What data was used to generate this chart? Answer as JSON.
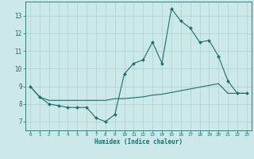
{
  "line1_x": [
    0,
    1,
    2,
    3,
    4,
    5,
    6,
    7,
    8,
    9,
    10,
    11,
    12,
    13,
    14,
    15,
    16,
    17,
    18,
    19,
    20,
    21,
    22,
    23
  ],
  "line1_y": [
    9.0,
    8.4,
    8.0,
    7.9,
    7.8,
    7.8,
    7.8,
    7.2,
    7.0,
    7.4,
    9.7,
    10.3,
    10.5,
    11.5,
    10.3,
    13.4,
    12.7,
    12.3,
    11.5,
    11.6,
    10.7,
    9.3,
    8.6,
    8.6
  ],
  "line2_x": [
    0,
    1,
    2,
    3,
    4,
    5,
    6,
    7,
    8,
    9,
    10,
    11,
    12,
    13,
    14,
    15,
    16,
    17,
    18,
    19,
    20,
    21,
    22,
    23
  ],
  "line2_y": [
    9.0,
    8.4,
    8.2,
    8.2,
    8.2,
    8.2,
    8.2,
    8.2,
    8.2,
    8.3,
    8.3,
    8.35,
    8.4,
    8.5,
    8.55,
    8.65,
    8.75,
    8.85,
    8.95,
    9.05,
    9.15,
    8.6,
    8.6,
    8.6
  ],
  "line_color": "#1a6e6e",
  "bg_color": "#cce8e8",
  "grid_color": "#aad0d0",
  "xlabel": "Humidex (Indice chaleur)",
  "ylim": [
    6.5,
    13.8
  ],
  "xlim": [
    -0.5,
    23.5
  ],
  "yticks": [
    7,
    8,
    9,
    10,
    11,
    12,
    13
  ],
  "xticks": [
    0,
    1,
    2,
    3,
    4,
    5,
    6,
    7,
    8,
    9,
    10,
    11,
    12,
    13,
    14,
    15,
    16,
    17,
    18,
    19,
    20,
    21,
    22,
    23
  ]
}
